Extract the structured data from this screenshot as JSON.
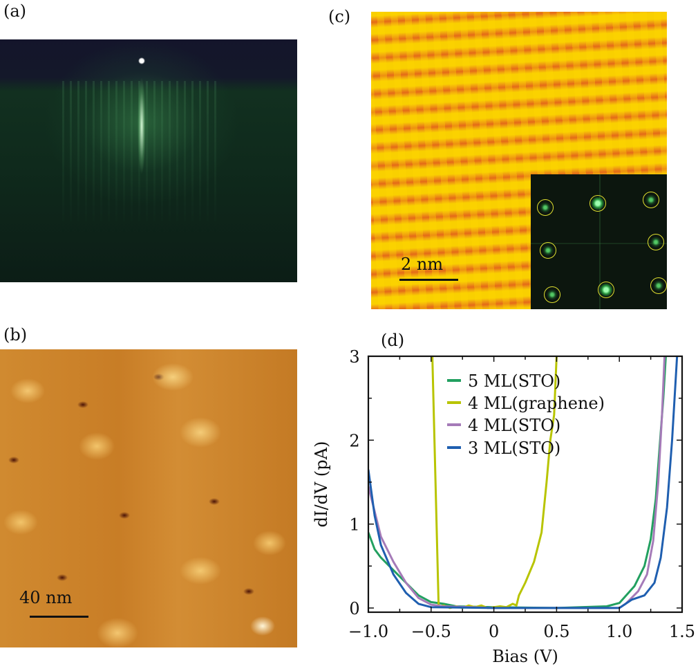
{
  "panels": {
    "a": {
      "label": "(a)"
    },
    "b": {
      "label": "(b)",
      "scale_bar": "40 nm"
    },
    "c": {
      "label": "(c)",
      "scale_bar": "2 nm"
    },
    "d": {
      "label": "(d)"
    }
  },
  "chart_data": {
    "type": "line",
    "title": "",
    "xlabel": "Bias (V)",
    "ylabel": "dI/dV (pA)",
    "xlim": [
      -1.0,
      1.5
    ],
    "ylim": [
      -0.05,
      3
    ],
    "xticks": [
      -1.0,
      -0.5,
      0,
      0.5,
      1.0,
      1.5
    ],
    "xtick_labels": [
      "−1.0",
      "−0.5",
      "0",
      "0.5",
      "1.0",
      "1.5"
    ],
    "yticks": [
      0,
      1,
      2,
      3
    ],
    "ytick_labels": [
      "0",
      "1",
      "2",
      "3"
    ],
    "legend_position": "top-center",
    "series": [
      {
        "name": "5 ML(STO)",
        "color": "#22a060",
        "x": [
          -1.0,
          -0.95,
          -0.9,
          -0.8,
          -0.7,
          -0.6,
          -0.5,
          -0.4,
          -0.3,
          0,
          0.5,
          0.9,
          1.0,
          1.12,
          1.2,
          1.25,
          1.29,
          1.32,
          1.35,
          1.37
        ],
        "y": [
          0.9,
          0.7,
          0.6,
          0.45,
          0.3,
          0.15,
          0.07,
          0.05,
          0.02,
          0.01,
          0.0,
          0.02,
          0.06,
          0.26,
          0.5,
          0.82,
          1.3,
          1.9,
          2.5,
          3.0
        ]
      },
      {
        "name": "4 ML(graphene)",
        "color": "#b8c400",
        "x": [
          -0.49,
          -0.44,
          -0.4,
          -0.35,
          -0.3,
          -0.25,
          -0.2,
          -0.15,
          -0.1,
          -0.05,
          0,
          0.05,
          0.1,
          0.15,
          0.18,
          0.2,
          0.25,
          0.32,
          0.38,
          0.42,
          0.45,
          0.48,
          0.5
        ],
        "y": [
          3.0,
          0.02,
          0.03,
          0.0,
          0.02,
          0.0,
          0.03,
          0.01,
          0.03,
          0.0,
          0.01,
          0.02,
          0.01,
          0.05,
          0.03,
          0.15,
          0.3,
          0.55,
          0.9,
          1.5,
          2.0,
          2.3,
          3.0
        ]
      },
      {
        "name": "4 ML(STO)",
        "color": "#a57bb8",
        "x": [
          -1.0,
          -0.95,
          -0.9,
          -0.8,
          -0.7,
          -0.6,
          -0.5,
          -0.4,
          0,
          0.5,
          1.0,
          1.05,
          1.15,
          1.22,
          1.27,
          1.31,
          1.34,
          1.36
        ],
        "y": [
          1.45,
          1.15,
          0.85,
          0.55,
          0.3,
          0.12,
          0.04,
          0.02,
          0.0,
          0.0,
          0.0,
          0.05,
          0.2,
          0.4,
          0.8,
          1.5,
          2.3,
          3.0
        ]
      },
      {
        "name": "3 ML(STO)",
        "color": "#1f5fb0",
        "x": [
          -1.0,
          -0.95,
          -0.9,
          -0.8,
          -0.7,
          -0.6,
          -0.5,
          0,
          0.5,
          1.0,
          1.1,
          1.2,
          1.28,
          1.33,
          1.38,
          1.42,
          1.46
        ],
        "y": [
          1.65,
          1.1,
          0.75,
          0.4,
          0.18,
          0.05,
          0.01,
          0.0,
          0.0,
          0.0,
          0.1,
          0.15,
          0.3,
          0.6,
          1.2,
          2.0,
          3.0
        ]
      }
    ]
  }
}
